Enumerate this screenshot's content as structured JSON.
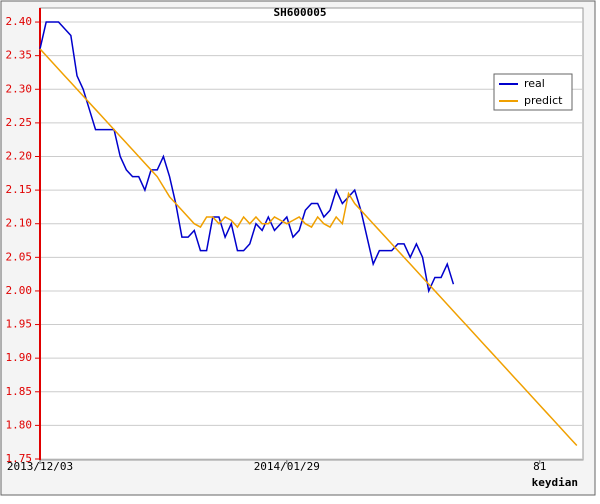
{
  "chart_data": {
    "type": "line",
    "title": "SH600005",
    "x_label": "keydian",
    "xlim": [
      0,
      88
    ],
    "ylim": [
      1.75,
      2.42
    ],
    "xticks": [
      {
        "value": 0,
        "label": "2013/12/03"
      },
      {
        "value": 40,
        "label": "2014/01/29"
      },
      81
    ],
    "yticks": [
      {
        "value": 1.75,
        "label": "1.75"
      },
      {
        "value": 1.8,
        "label": "1.80"
      },
      1.85,
      {
        "value": 1.9,
        "label": "1.90"
      },
      1.95,
      {
        "value": 2.0,
        "label": "2.00"
      },
      2.05,
      {
        "value": 2.1,
        "label": "2.10"
      },
      2.15,
      {
        "value": 2.2,
        "label": "2.20"
      },
      2.25,
      {
        "value": 2.3,
        "label": "2.30"
      },
      2.35,
      {
        "value": 2.4,
        "label": "2.40"
      }
    ],
    "grid": true,
    "legend": "upper right",
    "series": [
      {
        "name": "real",
        "color": "#0000cc",
        "values": [
          2.36,
          2.4,
          2.4,
          2.4,
          2.39,
          2.38,
          2.32,
          2.3,
          2.27,
          2.24,
          2.24,
          2.24,
          2.24,
          2.2,
          2.18,
          2.17,
          2.17,
          2.15,
          2.18,
          2.18,
          2.2,
          2.17,
          2.13,
          2.08,
          2.08,
          2.09,
          2.06,
          2.06,
          2.11,
          2.11,
          2.08,
          2.1,
          2.06,
          2.06,
          2.07,
          2.1,
          2.09,
          2.11,
          2.09,
          2.1,
          2.11,
          2.08,
          2.09,
          2.12,
          2.13,
          2.13,
          2.11,
          2.12,
          2.15,
          2.13,
          2.14,
          2.15,
          2.12,
          2.08,
          2.04,
          2.06,
          2.06,
          2.06,
          2.07,
          2.07,
          2.05,
          2.07,
          2.05,
          2.0,
          2.02,
          2.02,
          2.04,
          2.01
        ]
      },
      {
        "name": "predict",
        "color": "#f0a000",
        "values": [
          2.36,
          2.35,
          2.34,
          2.33,
          2.32,
          2.31,
          2.3,
          2.29,
          2.28,
          2.27,
          2.26,
          2.25,
          2.24,
          2.23,
          2.22,
          2.21,
          2.2,
          2.19,
          2.18,
          2.17,
          2.155,
          2.14,
          2.13,
          2.12,
          2.11,
          2.1,
          2.095,
          2.11,
          2.11,
          2.1,
          2.11,
          2.105,
          2.095,
          2.11,
          2.1,
          2.11,
          2.1,
          2.1,
          2.11,
          2.105,
          2.1,
          2.105,
          2.11,
          2.1,
          2.095,
          2.11,
          2.1,
          2.095,
          2.11,
          2.1,
          2.145,
          2.13,
          2.12,
          2.11,
          2.1,
          2.09,
          2.08,
          2.07,
          2.06,
          2.05,
          2.04,
          2.03,
          2.02,
          2.01,
          2.0,
          1.99,
          1.98,
          1.97,
          1.96,
          1.95,
          1.94,
          1.93,
          1.92,
          1.91,
          1.9,
          1.89,
          1.88,
          1.87,
          1.86,
          1.85,
          1.84,
          1.83,
          1.82,
          1.81,
          1.8,
          1.79,
          1.78,
          1.77
        ]
      }
    ]
  }
}
